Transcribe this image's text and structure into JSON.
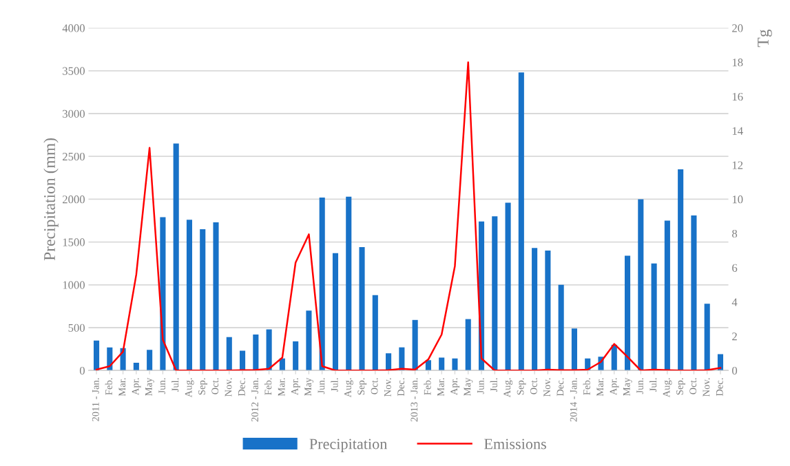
{
  "chart_data": {
    "type": "bar",
    "ylabel": "Precipitation (mm)",
    "y2label": "Tg",
    "categories": [
      "2011 - Jan.",
      "Feb.",
      "Mar.",
      "Apr.",
      "May",
      "Jun.",
      "Jul.",
      "Aug.",
      "Sep.",
      "Oct.",
      "Nov.",
      "Dec.",
      "2012 - Jan.",
      "Feb.",
      "Mar.",
      "Apr.",
      "May",
      "Jun.",
      "Jul.",
      "Aug.",
      "Sep.",
      "Oct.",
      "Nov.",
      "Dec.",
      "2013 - Jan.",
      "Feb.",
      "Mar.",
      "Apr.",
      "May",
      "Jun.",
      "Jul.",
      "Aug.",
      "Sep.",
      "Oct.",
      "Nov.",
      "Dec.",
      "2014 - Jan.",
      "Feb.",
      "Mar.",
      "Apr.",
      "May",
      "Jun.",
      "Jul.",
      "Aug.",
      "Sep.",
      "Oct.",
      "Nov.",
      "Dec."
    ],
    "series": [
      {
        "name": "Precipitation",
        "color": "#1872c8",
        "values": [
          350,
          270,
          260,
          90,
          240,
          1790,
          2650,
          1760,
          1650,
          1730,
          390,
          230,
          420,
          480,
          140,
          340,
          700,
          2020,
          1370,
          2030,
          1440,
          880,
          200,
          270,
          590,
          120,
          150,
          140,
          600,
          1740,
          1800,
          1960,
          3480,
          1430,
          1400,
          1000,
          490,
          140,
          160,
          300,
          1340,
          2000,
          1250,
          1750,
          2350,
          1810,
          780,
          190
        ]
      },
      {
        "name": "Emissions",
        "type": "line",
        "axis": "y2",
        "color": "#ff0000",
        "values": [
          0.05,
          0.25,
          1.1,
          5.6,
          13.0,
          1.8,
          0,
          0,
          0,
          0,
          0,
          0.02,
          0.03,
          0.1,
          0.75,
          6.3,
          7.95,
          0.25,
          0,
          0,
          0,
          0,
          0.02,
          0.1,
          0.05,
          0.65,
          2.1,
          6.1,
          18.0,
          0.7,
          0,
          0,
          0,
          0,
          0.05,
          0.02,
          0.02,
          0.05,
          0.5,
          1.55,
          0.8,
          0,
          0.05,
          0.02,
          0,
          0,
          0.02,
          0.15
        ]
      }
    ],
    "ylim": [
      0,
      4000
    ],
    "yticks": [
      0,
      500,
      1000,
      1500,
      2000,
      2500,
      3000,
      3500,
      4000
    ],
    "y2lim": [
      0,
      20
    ],
    "y2ticks": [
      0,
      2,
      4,
      6,
      8,
      10,
      12,
      14,
      16,
      18,
      20
    ],
    "grid": "y",
    "legend": "bottom",
    "marker": "none",
    "line_style": "solid"
  }
}
